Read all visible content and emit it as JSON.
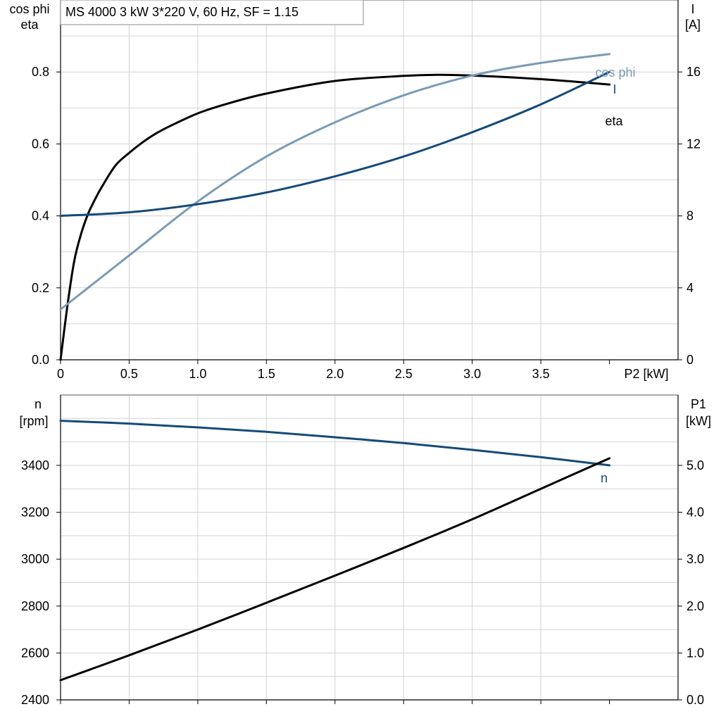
{
  "chart_data": [
    {
      "type": "line",
      "title": "MS 4000   3 kW   3*220 V, 60 Hz, SF = 1.15",
      "xlabel": "P2 [kW]",
      "xlim": [
        0,
        4.5
      ],
      "xticks": [
        0,
        0.5,
        1.0,
        1.5,
        2.0,
        2.5,
        3.0,
        3.5
      ],
      "xtick_labels": [
        "0",
        "0.5",
        "1.0",
        "1.5",
        "2.0",
        "2.5",
        "3.0",
        "3.5"
      ],
      "ylabel_left_line1": "cos phi",
      "ylabel_left_line2": "eta",
      "ylim_left": [
        0,
        1.0
      ],
      "yticks_left": [
        0,
        0.2,
        0.4,
        0.6,
        0.8
      ],
      "ytick_labels_left": [
        "0.0",
        "0.2",
        "0.4",
        "0.6",
        "0.8"
      ],
      "ylabel_right_line1": "I",
      "ylabel_right_line2": "[A]",
      "ylim_right": [
        0,
        20
      ],
      "yticks_right": [
        0,
        4,
        8,
        12,
        16
      ],
      "ytick_labels_right": [
        "0",
        "4",
        "8",
        "12",
        "16"
      ],
      "grid": true,
      "series": [
        {
          "name": "eta",
          "axis": "left",
          "color": "#000000",
          "x": [
            0,
            0.05,
            0.1,
            0.15,
            0.2,
            0.25,
            0.3,
            0.4,
            0.5,
            0.6,
            0.7,
            0.8,
            1.0,
            1.2,
            1.5,
            2.0,
            2.5,
            2.75,
            3.0,
            3.5,
            4.0
          ],
          "y": [
            0,
            0.15,
            0.275,
            0.35,
            0.405,
            0.445,
            0.48,
            0.54,
            0.575,
            0.605,
            0.63,
            0.65,
            0.685,
            0.71,
            0.74,
            0.775,
            0.789,
            0.792,
            0.79,
            0.78,
            0.765
          ]
        },
        {
          "name": "cos phi",
          "axis": "left",
          "color": "#7a9bb7",
          "x": [
            0,
            0.5,
            1.0,
            1.5,
            2.0,
            2.5,
            3.0,
            3.5,
            4.0
          ],
          "y": [
            0.14,
            0.29,
            0.44,
            0.565,
            0.66,
            0.735,
            0.79,
            0.825,
            0.85
          ]
        },
        {
          "name": "I",
          "axis": "right",
          "color": "#154a7a",
          "x": [
            0,
            0.5,
            1.0,
            1.5,
            2.0,
            2.5,
            3.0,
            3.5,
            4.0
          ],
          "y": [
            8.0,
            8.2,
            8.65,
            9.3,
            10.2,
            11.3,
            12.65,
            14.2,
            16.0
          ]
        }
      ]
    },
    {
      "type": "line",
      "xlim": [
        0,
        4.5
      ],
      "xticks": [
        0,
        0.5,
        1.0,
        1.5,
        2.0,
        2.5,
        3.0,
        3.5
      ],
      "ylabel_left_line1": "n",
      "ylabel_left_line2": "[rpm]",
      "ylim_left": [
        2400,
        3700
      ],
      "yticks_left": [
        2400,
        2600,
        2800,
        3000,
        3200,
        3400
      ],
      "ytick_labels_left": [
        "2400",
        "2600",
        "2800",
        "3000",
        "3200",
        "3400"
      ],
      "ylabel_right_line1": "P1",
      "ylabel_right_line2": "[kW]",
      "ylim_right": [
        0,
        6.5
      ],
      "yticks_right": [
        0,
        1,
        2,
        3,
        4,
        5
      ],
      "ytick_labels_right": [
        "0.0",
        "1.0",
        "2.0",
        "3.0",
        "4.0",
        "5.0"
      ],
      "grid": true,
      "series": [
        {
          "name": "n",
          "axis": "left",
          "color": "#154a7a",
          "x": [
            0,
            0.5,
            1.0,
            1.5,
            2.0,
            2.5,
            3.0,
            3.5,
            4.0
          ],
          "y": [
            3590,
            3578,
            3562,
            3543,
            3520,
            3495,
            3466,
            3435,
            3400
          ]
        },
        {
          "name": "",
          "axis": "right",
          "color": "#000000",
          "x": [
            0,
            0.5,
            1.0,
            1.5,
            2.0,
            2.5,
            3.0,
            3.5,
            4.0
          ],
          "y": [
            0.42,
            0.95,
            1.5,
            2.07,
            2.65,
            3.24,
            3.85,
            4.5,
            5.15
          ]
        }
      ]
    }
  ]
}
